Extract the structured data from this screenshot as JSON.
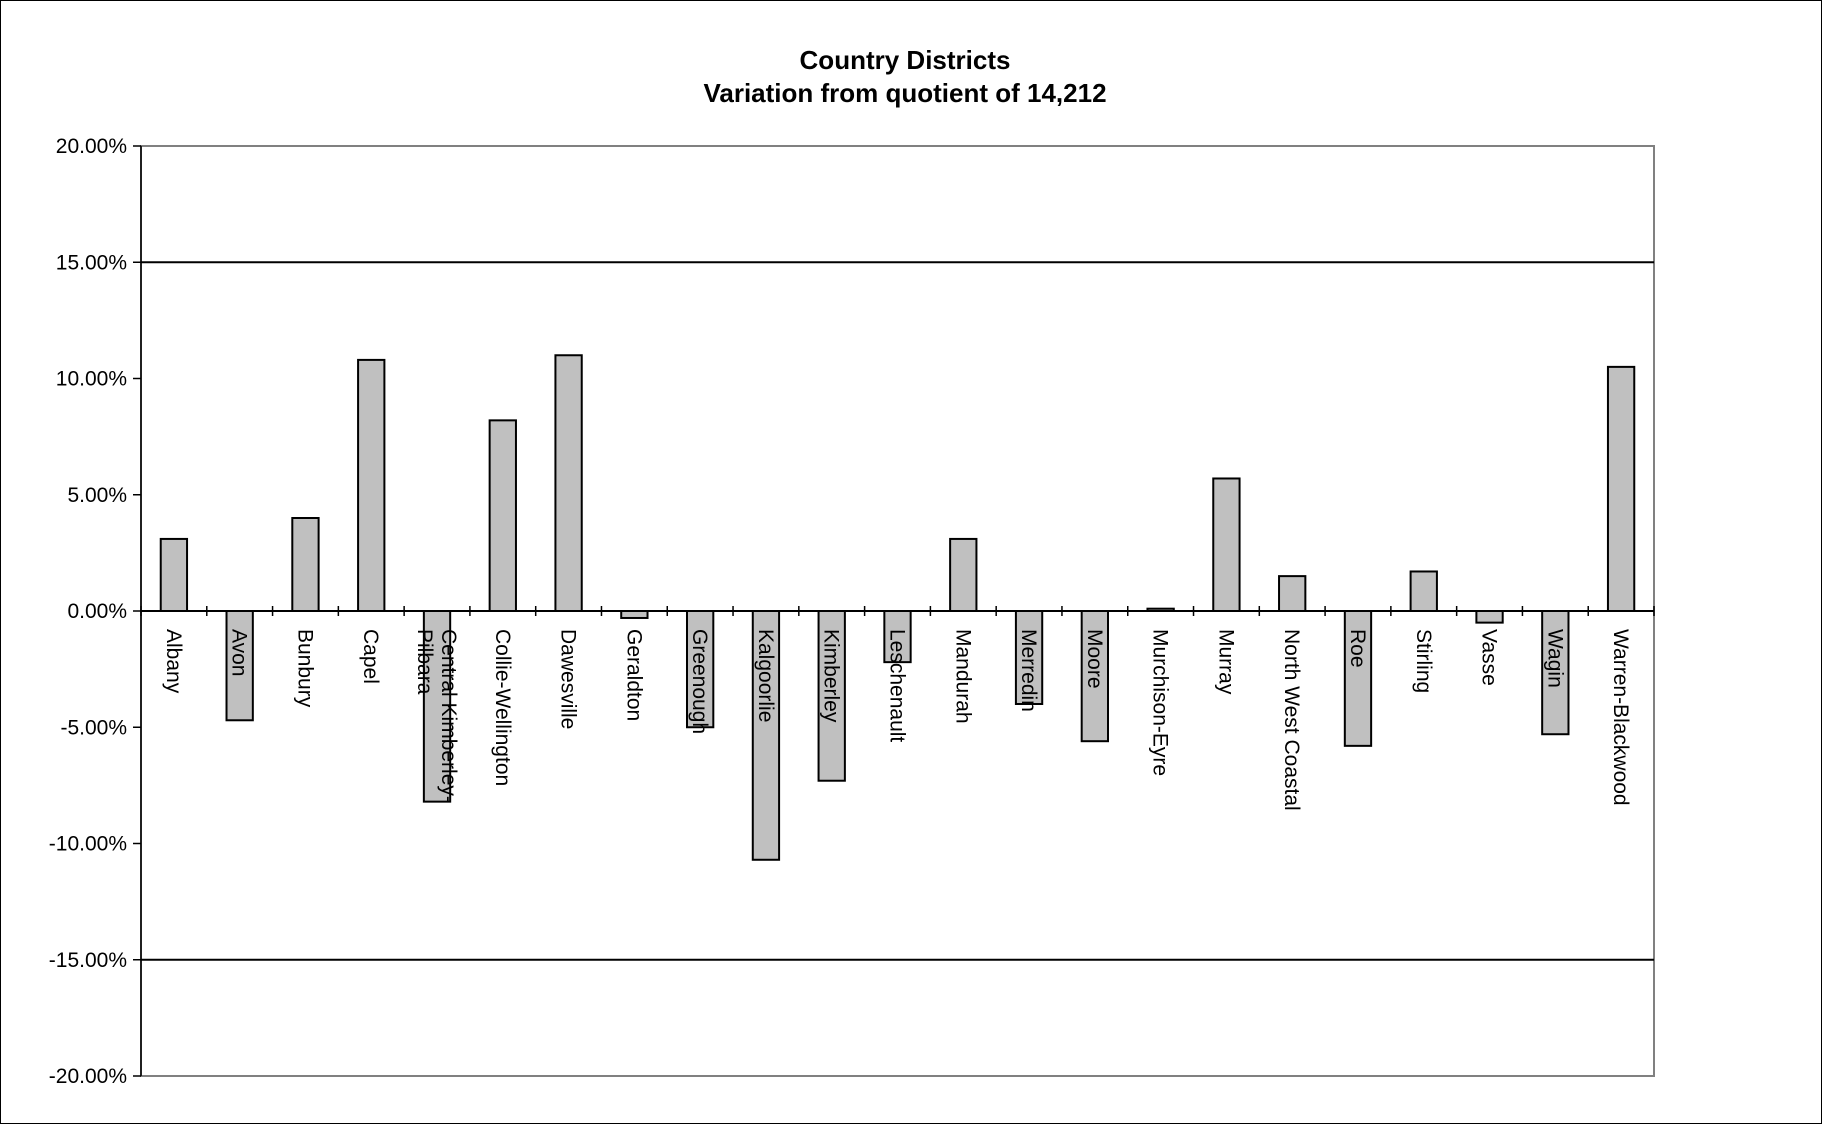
{
  "chart_data": {
    "type": "bar",
    "title": "Country Districts",
    "subtitle": "Variation from quotient of 14,212",
    "xlabel": "",
    "ylabel": "",
    "ylim": [
      -0.2,
      0.2
    ],
    "y_ticks": [
      0.2,
      0.15,
      0.1,
      0.05,
      0.0,
      -0.05,
      -0.1,
      -0.15,
      -0.2
    ],
    "y_tick_labels": [
      "20.00%",
      "15.00%",
      "10.00%",
      "5.00%",
      "0.00%",
      "-5.00%",
      "-10.00%",
      "-15.00%",
      "-20.00%"
    ],
    "reference_lines": [
      0.15,
      -0.15
    ],
    "grid": false,
    "legend": "none",
    "categories": [
      "Albany",
      "Avon",
      "Bunbury",
      "Capel",
      "Central Kimberley-Pilbara",
      "Collie-Wellington",
      "Dawesville",
      "Geraldton",
      "Greenough",
      "Kalgoorlie",
      "Kimberley",
      "Leschenault",
      "Mandurah",
      "Merredin",
      "Moore",
      "Murchison-Eyre",
      "Murray",
      "North West Coastal",
      "Roe",
      "Stirling",
      "Vasse",
      "Wagin",
      "Warren-Blackwood"
    ],
    "category_label_lines": [
      [
        "Albany"
      ],
      [
        "Avon"
      ],
      [
        "Bunbury"
      ],
      [
        "Capel"
      ],
      [
        "Central Kimberley-",
        "Pilbara"
      ],
      [
        "Collie-Wellington"
      ],
      [
        "Dawesville"
      ],
      [
        "Geraldton"
      ],
      [
        "Greenough"
      ],
      [
        "Kalgoorlie"
      ],
      [
        "Kimberley"
      ],
      [
        "Leschenault"
      ],
      [
        "Mandurah"
      ],
      [
        "Merredin"
      ],
      [
        "Moore"
      ],
      [
        "Murchison-Eyre"
      ],
      [
        "Murray"
      ],
      [
        "North West Coastal"
      ],
      [
        "Roe"
      ],
      [
        "Stirling"
      ],
      [
        "Vasse"
      ],
      [
        "Wagin"
      ],
      [
        "Warren-Blackwood"
      ]
    ],
    "values": [
      0.031,
      -0.047,
      0.04,
      0.108,
      -0.082,
      0.082,
      0.11,
      -0.003,
      -0.05,
      -0.107,
      -0.073,
      -0.022,
      0.031,
      -0.04,
      -0.056,
      0.001,
      0.057,
      0.015,
      -0.058,
      0.017,
      -0.005,
      -0.053,
      0.105
    ],
    "colors": {
      "bar_fill": "#c0c0c0",
      "bar_stroke": "#000000",
      "axis": "#000000",
      "plot_border": "#808080"
    }
  }
}
